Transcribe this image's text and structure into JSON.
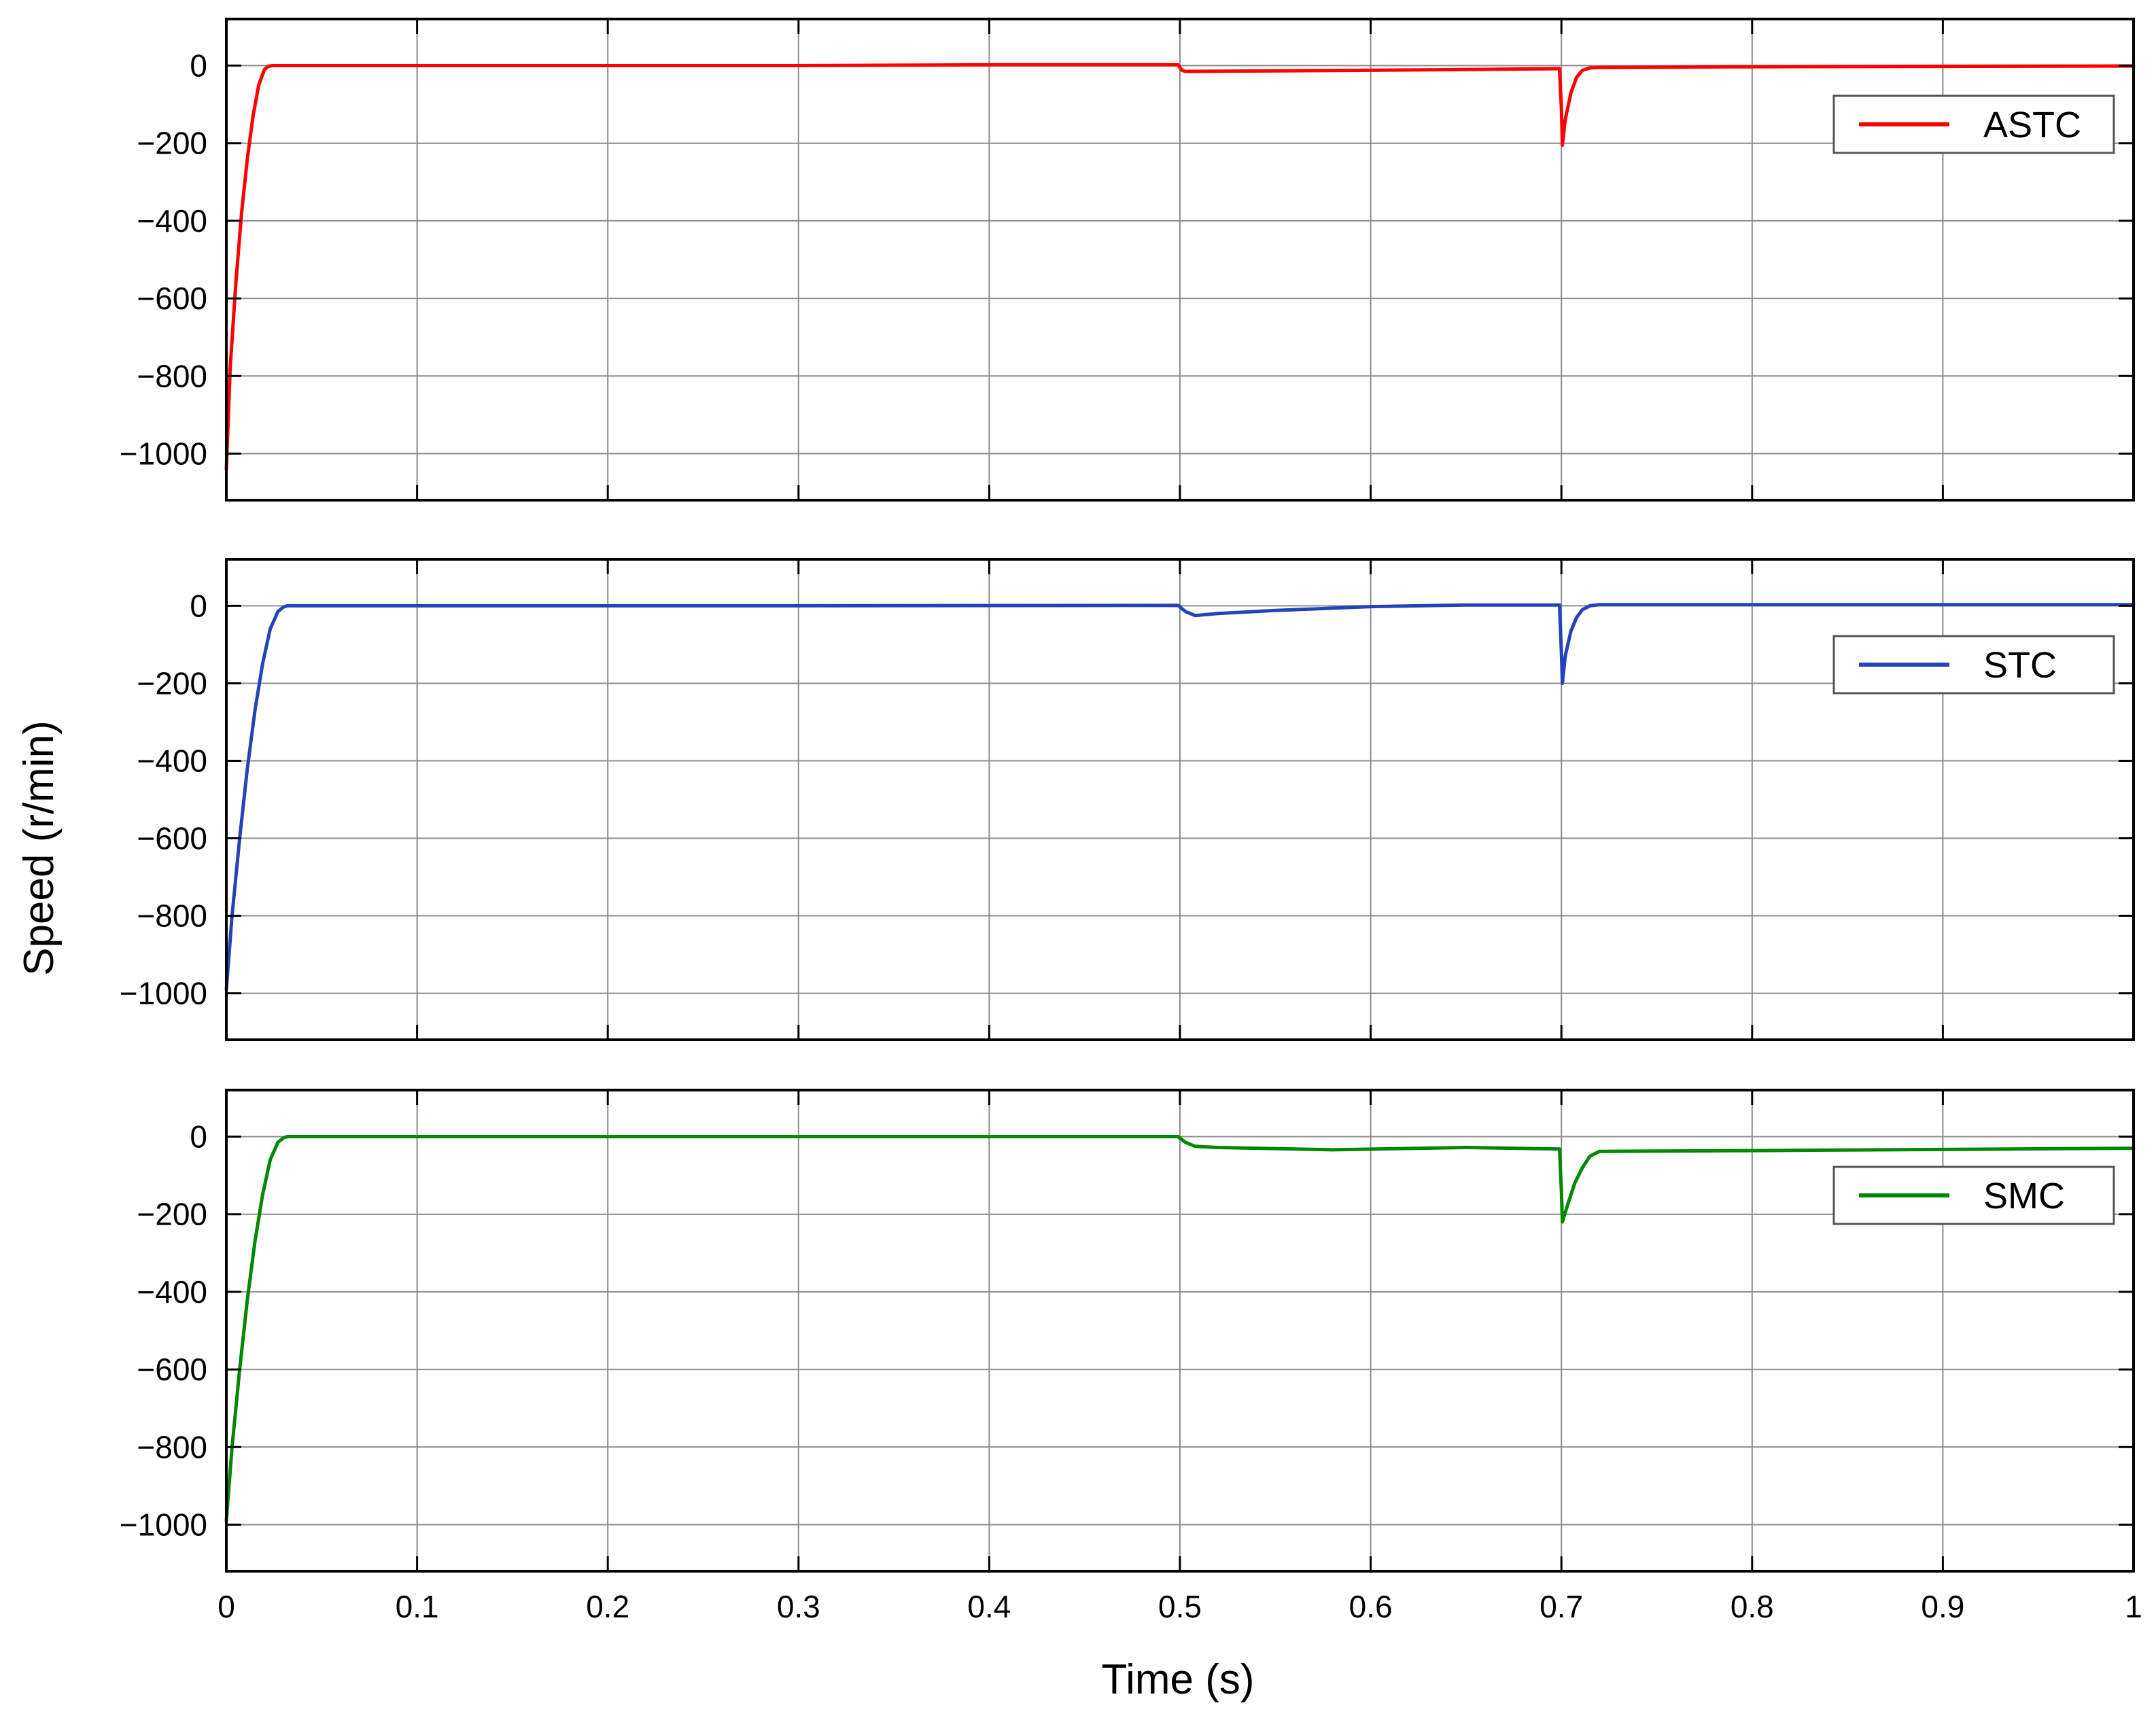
{
  "figure": {
    "ylabel": "Speed (r/min)",
    "xlabel": "Time (s)"
  },
  "chart_data": [
    {
      "type": "line",
      "xlim": [
        0,
        1
      ],
      "ylim": [
        -1120,
        120
      ],
      "xticks": [
        "0",
        "0.1",
        "0.2",
        "0.3",
        "0.4",
        "0.5",
        "0.6",
        "0.7",
        "0.8",
        "0.9",
        "1"
      ],
      "yticks": [
        "0",
        "−200",
        "−400",
        "−600",
        "−800",
        "−1000"
      ],
      "ytick_values": [
        0,
        -200,
        -400,
        -600,
        -800,
        -1000
      ],
      "grid": true,
      "legend_position": "top-right",
      "series": [
        {
          "name": "ASTC",
          "color": "#ff0000",
          "x": [
            0,
            0.002,
            0.005,
            0.008,
            0.011,
            0.014,
            0.017,
            0.02,
            0.022,
            0.024,
            0.3,
            0.4,
            0.499,
            0.501,
            0.503,
            0.6,
            0.699,
            0.7,
            0.7005,
            0.702,
            0.705,
            0.708,
            0.711,
            0.715,
            0.72,
            0.8,
            1.0
          ],
          "y": [
            -1040,
            -780,
            -560,
            -380,
            -240,
            -130,
            -50,
            -10,
            -2,
            0,
            0,
            2,
            2,
            -12,
            -15,
            -12,
            -8,
            -110,
            -205,
            -140,
            -70,
            -30,
            -12,
            -6,
            -5,
            -3,
            -1
          ]
        },
        {
          "name": "STC",
          "color": "#2244bb",
          "x": [
            0,
            0.003,
            0.007,
            0.011,
            0.015,
            0.019,
            0.023,
            0.027,
            0.03,
            0.032,
            0.3,
            0.499,
            0.503,
            0.508,
            0.52,
            0.55,
            0.6,
            0.65,
            0.699,
            0.7,
            0.7005,
            0.702,
            0.705,
            0.708,
            0.711,
            0.715,
            0.72,
            1.0
          ],
          "y": [
            -990,
            -800,
            -600,
            -420,
            -270,
            -150,
            -60,
            -15,
            -3,
            0,
            0,
            1,
            -15,
            -25,
            -20,
            -12,
            -2,
            2,
            2,
            -120,
            -200,
            -130,
            -65,
            -30,
            -10,
            0,
            3,
            3
          ]
        },
        {
          "name": "SMC",
          "color": "#008800",
          "x": [
            0,
            0.003,
            0.007,
            0.011,
            0.015,
            0.019,
            0.023,
            0.027,
            0.03,
            0.032,
            0.3,
            0.499,
            0.503,
            0.508,
            0.52,
            0.58,
            0.65,
            0.699,
            0.7,
            0.7005,
            0.703,
            0.707,
            0.711,
            0.715,
            0.72,
            0.8,
            1.0
          ],
          "y": [
            -990,
            -800,
            -600,
            -420,
            -270,
            -150,
            -60,
            -15,
            -3,
            0,
            0,
            0,
            -15,
            -25,
            -28,
            -34,
            -28,
            -32,
            -140,
            -220,
            -180,
            -120,
            -80,
            -50,
            -38,
            -36,
            -30
          ]
        }
      ]
    }
  ]
}
